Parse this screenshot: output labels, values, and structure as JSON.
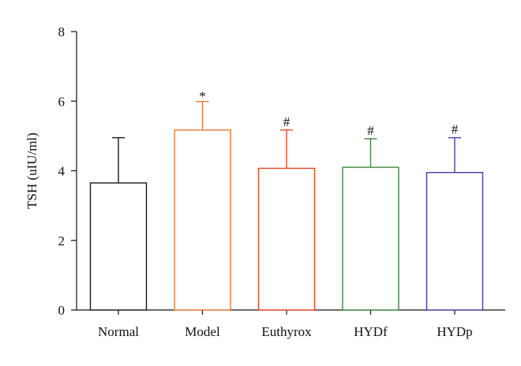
{
  "chart_data": {
    "type": "bar",
    "title": "",
    "xlabel": "",
    "ylabel": "TSH (uIU/ml)",
    "ylim": [
      0,
      8
    ],
    "yticks": [
      0,
      2,
      4,
      6,
      8
    ],
    "grid": false,
    "categories": [
      "Normal",
      "Model",
      "Euthyrox",
      "HYDf",
      "HYDp"
    ],
    "values": [
      3.65,
      5.17,
      4.07,
      4.1,
      3.95
    ],
    "errors": [
      1.3,
      0.82,
      1.1,
      0.82,
      1.0
    ],
    "annotations": [
      "",
      "*",
      "#",
      "#",
      "#"
    ],
    "colors": [
      "#1a1a1a",
      "#e87a2e",
      "#e8452a",
      "#3a8a3a",
      "#4a3aa8"
    ]
  }
}
